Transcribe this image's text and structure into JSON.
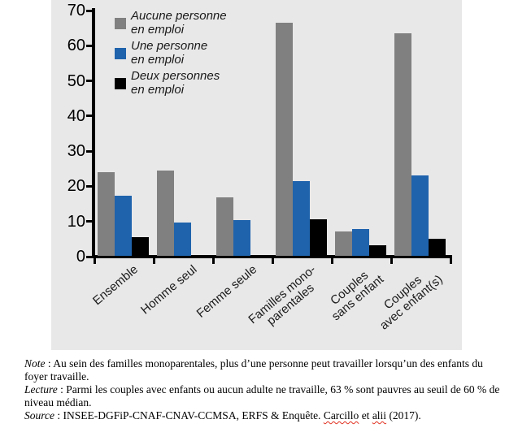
{
  "chart_data": {
    "type": "bar",
    "title": "",
    "xlabel": "",
    "ylabel": "",
    "ylim": [
      0,
      70
    ],
    "ytick_step": 10,
    "grid": false,
    "legend_position": "inside-top-left",
    "panel_background": "#e8e8e9",
    "categories": [
      "Ensemble",
      "Homme seul",
      "Femme seule",
      "Familles mono-\nparentales",
      "Couples\nsans enfant",
      "Couples\navec enfant(s)"
    ],
    "series": [
      {
        "name": "Aucune personne\nen emploi",
        "color": "#808080",
        "values": [
          23.7,
          24.2,
          16.7,
          66.2,
          7.0,
          63.3
        ]
      },
      {
        "name": "Une personne\nen emploi",
        "color": "#1f63ac",
        "values": [
          17.2,
          9.5,
          10.2,
          21.3,
          7.6,
          22.8
        ]
      },
      {
        "name": "Deux personnes\nen emploi",
        "color": "#000000",
        "values": [
          5.2,
          null,
          null,
          10.5,
          3.0,
          4.9
        ]
      }
    ]
  },
  "notes": {
    "note_label": "Note",
    "note_text": " : Au sein des familles monoparentales, plus d’une personne peut travailler lorsqu’un des enfants du foyer travaille.",
    "lecture_label": "Lecture",
    "lecture_text": " : Parmi les couples avec enfants ou aucun adulte ne travaille, 63 % sont pauvres au seuil de 60 % de niveau médian.",
    "source_label": "Source",
    "source_sep": " : ",
    "source_text_1": "INSEE-DGFiP-CNAF-CNAV-CCMSA, ERFS & Enquête. ",
    "source_misspell_1": "Carcillo",
    "source_text_2": " et ",
    "source_misspell_2": "alii",
    "source_text_3": " (2017)."
  }
}
